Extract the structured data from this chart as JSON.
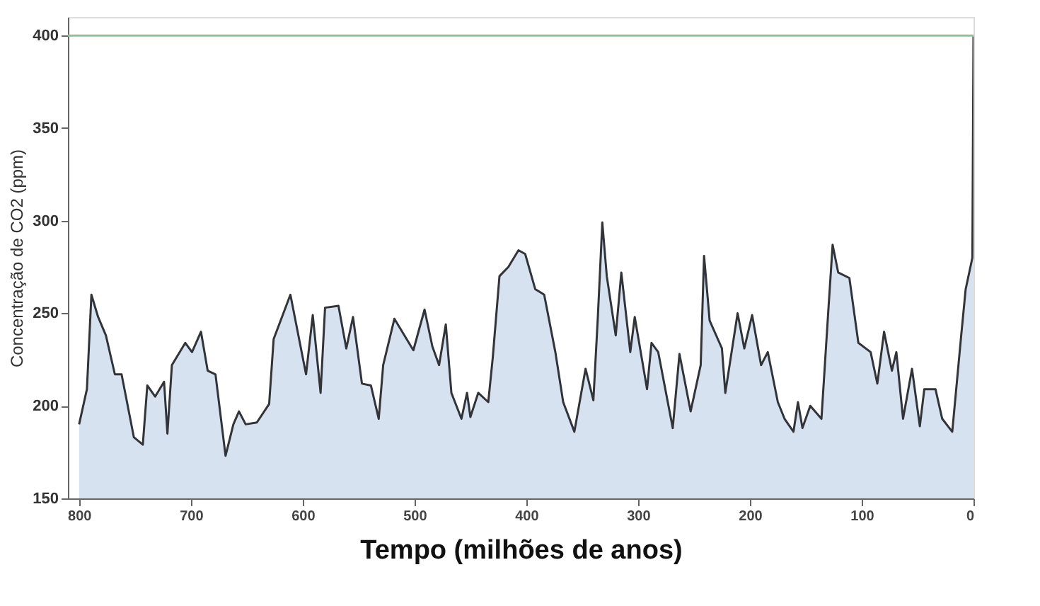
{
  "chart_data": {
    "type": "area",
    "xlabel": "Tempo (milhões de anos)",
    "ylabel": "Concentração de CO2 (ppm)",
    "x": [
      800,
      793,
      789,
      783,
      776,
      768,
      762,
      751,
      743,
      739,
      732,
      724,
      721,
      717,
      705,
      699,
      691,
      685,
      678,
      669,
      662,
      657,
      651,
      641,
      630,
      626,
      611,
      597,
      591,
      584,
      580,
      568,
      561,
      555,
      547,
      539,
      532,
      528,
      518,
      501,
      491,
      484,
      478,
      472,
      467,
      458,
      453,
      450,
      443,
      434,
      430,
      424,
      416,
      407,
      401,
      392,
      384,
      374,
      367,
      357,
      347,
      340,
      336,
      332,
      328,
      320,
      315,
      307,
      303,
      292,
      288,
      282,
      269,
      263,
      253,
      244,
      241,
      236,
      225,
      222,
      211,
      205,
      198,
      190,
      184,
      175,
      169,
      161,
      157,
      153,
      146,
      136,
      130,
      126,
      121,
      111,
      103,
      92,
      86,
      80,
      73,
      69,
      63,
      55,
      48,
      44,
      34,
      28,
      19,
      11,
      7,
      1,
      0
    ],
    "series": [
      {
        "color": "#c6d6ea",
        "values": [
          190,
          209,
          260,
          248,
          238,
          217,
          217,
          183,
          179,
          211,
          205,
          213,
          185,
          222,
          234,
          229,
          240,
          219,
          217,
          173,
          190,
          197,
          190,
          191,
          201,
          236,
          260,
          217,
          249,
          207,
          253,
          254,
          231,
          248,
          212,
          211,
          193,
          222,
          247,
          230,
          252,
          232,
          222,
          244,
          207,
          193,
          207,
          194,
          207,
          202,
          226,
          270,
          275,
          284,
          282,
          263,
          260,
          229,
          202,
          186,
          220,
          203,
          248,
          299,
          270,
          238,
          272,
          229,
          248,
          209,
          234,
          229,
          188,
          228,
          197,
          222,
          281,
          246,
          231,
          207,
          250,
          231,
          249,
          222,
          229,
          202,
          193,
          186,
          202,
          188,
          200,
          193,
          250,
          287,
          272,
          269,
          234,
          229,
          212,
          240,
          219,
          229,
          193,
          220,
          189,
          209,
          209,
          193,
          186,
          238,
          263,
          280,
          400
        ]
      }
    ],
    "xlim": [
      810,
      0
    ],
    "ylim": [
      150,
      410
    ],
    "xticks": [
      800,
      700,
      600,
      500,
      400,
      300,
      200,
      100,
      0
    ],
    "yticks": [
      150,
      200,
      250,
      300,
      350,
      400
    ],
    "ref_lines": [
      {
        "axis": "y",
        "value": 400,
        "color": "#8fc48f"
      }
    ],
    "grid": false
  }
}
